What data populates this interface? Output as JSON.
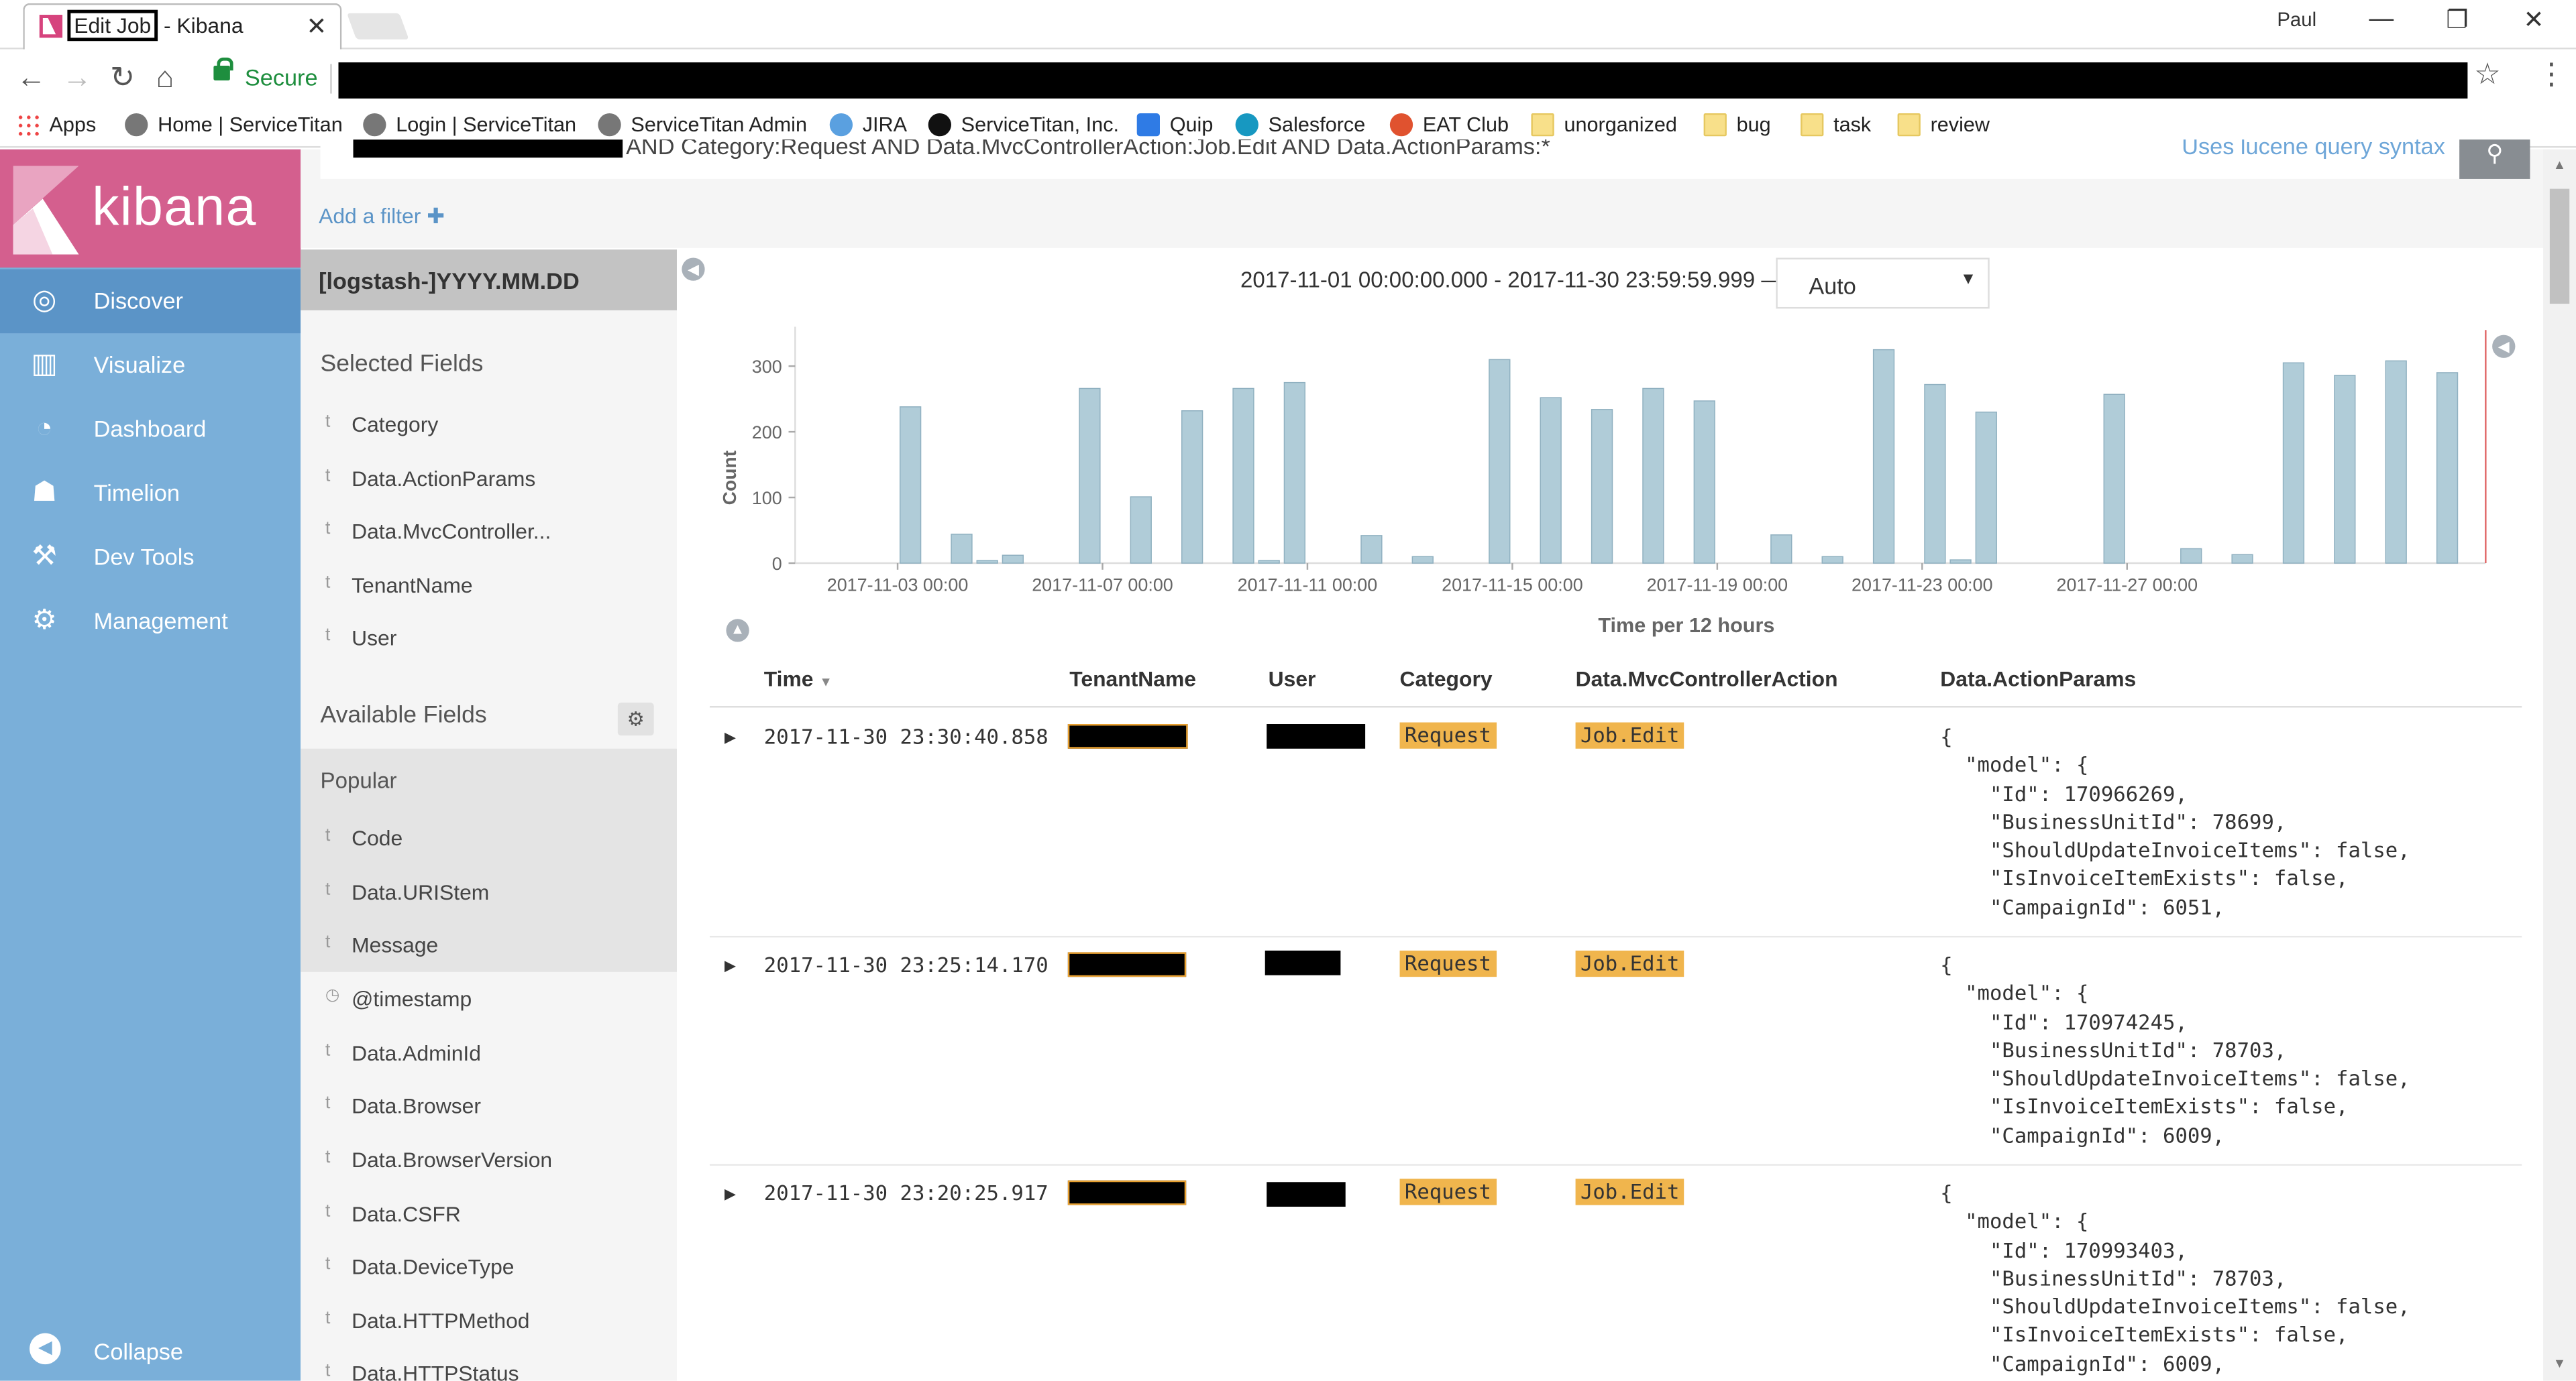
{
  "browser": {
    "tab": {
      "title_box": "Edit Job",
      "title_rest": "- Kibana"
    },
    "profile": "Paul",
    "secure_label": "Secure",
    "bookmarks": [
      {
        "label": "Apps",
        "icon": "apps-grid-icon"
      },
      {
        "label": "Home | ServiceTitan",
        "icon": "servicetitan-icon"
      },
      {
        "label": "Login | ServiceTitan",
        "icon": "servicetitan-icon"
      },
      {
        "label": "ServiceTitan Admin",
        "icon": "servicetitan-icon"
      },
      {
        "label": "JIRA",
        "icon": "jira-icon"
      },
      {
        "label": "ServiceTitan, Inc.",
        "icon": "github-icon"
      },
      {
        "label": "Quip",
        "icon": "quip-icon"
      },
      {
        "label": "Salesforce",
        "icon": "salesforce-icon"
      },
      {
        "label": "EAT Club",
        "icon": "eatclub-icon"
      },
      {
        "label": "unorganized",
        "icon": "folder-icon"
      },
      {
        "label": "bug",
        "icon": "folder-icon"
      },
      {
        "label": "task",
        "icon": "folder-icon"
      },
      {
        "label": "review",
        "icon": "folder-icon"
      }
    ]
  },
  "kibana": {
    "brand": "kibana",
    "nav": [
      {
        "label": "Discover",
        "icon": "compass-icon",
        "active": true
      },
      {
        "label": "Visualize",
        "icon": "bar-chart-icon",
        "active": false
      },
      {
        "label": "Dashboard",
        "icon": "dashboard-icon",
        "active": false
      },
      {
        "label": "Timelion",
        "icon": "timelion-icon",
        "active": false
      },
      {
        "label": "Dev Tools",
        "icon": "wrench-icon",
        "active": false
      },
      {
        "label": "Management",
        "icon": "gear-icon",
        "active": false
      }
    ],
    "collapse_label": "Collapse",
    "colors": {
      "brand": "#d45f8e",
      "nav": "#7aafd9",
      "nav_active": "#5b94c7",
      "bar": "#b0ccd8",
      "tag": "#f0b54d"
    }
  },
  "query": {
    "text": "AND Category:Request AND Data.MvcControllerAction:Job.Edit AND Data.ActionParams:*",
    "hint": "Uses lucene query syntax",
    "add_filter": "Add a filter"
  },
  "sidebar": {
    "index_pattern": "[logstash-]YYYY.MM.DD",
    "selected_title": "Selected Fields",
    "selected_fields": [
      {
        "type": "t",
        "name": "Category"
      },
      {
        "type": "t",
        "name": "Data.ActionParams"
      },
      {
        "type": "t",
        "name": "Data.MvcController..."
      },
      {
        "type": "t",
        "name": "TenantName"
      },
      {
        "type": "t",
        "name": "User"
      }
    ],
    "available_title": "Available Fields",
    "popular_title": "Popular",
    "popular_fields": [
      {
        "type": "t",
        "name": "Code"
      },
      {
        "type": "t",
        "name": "Data.URIStem"
      },
      {
        "type": "t",
        "name": "Message"
      }
    ],
    "available_fields": [
      {
        "type": "clock",
        "name": "@timestamp"
      },
      {
        "type": "t",
        "name": "Data.AdminId"
      },
      {
        "type": "t",
        "name": "Data.Browser"
      },
      {
        "type": "t",
        "name": "Data.BrowserVersion"
      },
      {
        "type": "t",
        "name": "Data.CSFR"
      },
      {
        "type": "t",
        "name": "Data.DeviceType"
      },
      {
        "type": "t",
        "name": "Data.HTTPMethod"
      },
      {
        "type": "t",
        "name": "Data.HTTPStatus"
      }
    ]
  },
  "histogram": {
    "time_range": "2017-11-01 00:00:00.000 - 2017-11-30 23:59:59.999 —",
    "interval": "Auto"
  },
  "chart_data": {
    "type": "bar",
    "xlabel": "Time per 12 hours",
    "ylabel": "Count",
    "ylim": [
      0,
      350
    ],
    "yticks": [
      0,
      100,
      200,
      300
    ],
    "xticks": [
      "2017-11-03 00:00",
      "2017-11-07 00:00",
      "2017-11-11 00:00",
      "2017-11-15 00:00",
      "2017-11-19 00:00",
      "2017-11-23 00:00",
      "2017-11-27 00:00"
    ],
    "bucket_start": "2017-11-01 00:00",
    "values": [
      0,
      0,
      0,
      0,
      238,
      0,
      44,
      4,
      12,
      0,
      0,
      266,
      0,
      101,
      0,
      232,
      0,
      266,
      4,
      275,
      0,
      0,
      42,
      0,
      10,
      0,
      0,
      310,
      0,
      252,
      0,
      234,
      0,
      266,
      0,
      247,
      0,
      0,
      43,
      0,
      10,
      0,
      325,
      0,
      272,
      5,
      230,
      0,
      0,
      0,
      0,
      257,
      0,
      0,
      22,
      0,
      13,
      0,
      305,
      0,
      286,
      0,
      308,
      0,
      290,
      0
    ]
  },
  "table": {
    "headers": [
      "Time",
      "TenantName",
      "User",
      "Category",
      "Data.MvcControllerAction",
      "Data.ActionParams"
    ],
    "rows": [
      {
        "time": "2017-11-30 23:30:40.858",
        "category": "Request",
        "action": "Job.Edit",
        "params": "{\n  \"model\": {\n    \"Id\": 170966269,\n    \"BusinessUnitId\": 78699,\n    \"ShouldUpdateInvoiceItems\": false,\n    \"IsInvoiceItemExists\": false,\n    \"CampaignId\": 6051,"
      },
      {
        "time": "2017-11-30 23:25:14.170",
        "category": "Request",
        "action": "Job.Edit",
        "params": "{\n  \"model\": {\n    \"Id\": 170974245,\n    \"BusinessUnitId\": 78703,\n    \"ShouldUpdateInvoiceItems\": false,\n    \"IsInvoiceItemExists\": false,\n    \"CampaignId\": 6009,"
      },
      {
        "time": "2017-11-30 23:20:25.917",
        "category": "Request",
        "action": "Job.Edit",
        "params": "{\n  \"model\": {\n    \"Id\": 170993403,\n    \"BusinessUnitId\": 78703,\n    \"ShouldUpdateInvoiceItems\": false,\n    \"IsInvoiceItemExists\": false,\n    \"CampaignId\": 6009,"
      }
    ]
  }
}
